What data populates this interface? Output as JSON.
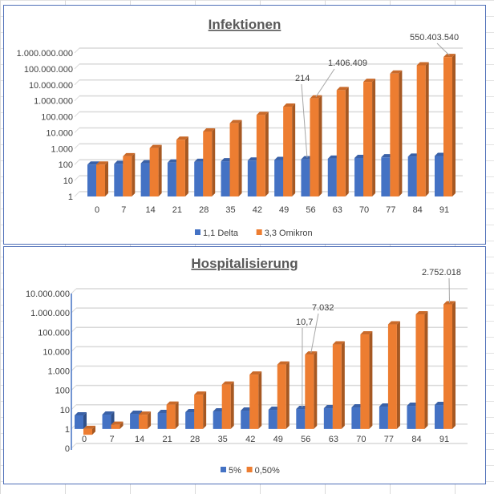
{
  "chart_data": [
    {
      "type": "bar",
      "title": "Infektionen",
      "yscale": "log",
      "ylim": [
        1,
        1000000000
      ],
      "ytick_labels": [
        "1",
        "10",
        "100",
        "1.000",
        "10.000",
        "100.000",
        "1.000.000",
        "10.000.000",
        "100.000.000",
        "1.000.000.000"
      ],
      "categories": [
        "0",
        "7",
        "14",
        "21",
        "28",
        "35",
        "42",
        "49",
        "56",
        "63",
        "70",
        "77",
        "84",
        "91"
      ],
      "series": [
        {
          "name": "1,1 Delta",
          "color": "#4472c4",
          "values": [
            100,
            110,
            121,
            133.1,
            146.41,
            161.05,
            177.16,
            194.87,
            214.36,
            235.79,
            259.37,
            285.31,
            313.84,
            345.23
          ]
        },
        {
          "name": "3,3 Omikron",
          "color": "#ed7d31",
          "values": [
            100,
            330,
            1089,
            3593.7,
            11859.21,
            39135.39,
            129146.8,
            426184.4,
            1406409,
            4641148,
            15315790,
            50542107,
            166788951,
            550403540
          ]
        }
      ],
      "annotations": [
        {
          "series": 0,
          "category": "56",
          "text": "214"
        },
        {
          "series": 1,
          "category": "56",
          "text": "1.406.409"
        },
        {
          "series": 1,
          "category": "91",
          "text": "550.403.540"
        }
      ],
      "grid": true,
      "legend": "bottom"
    },
    {
      "type": "bar",
      "title": "Hospitalisierung",
      "yscale": "log",
      "ylim": [
        0.1,
        10000000
      ],
      "ytick_labels": [
        "0",
        "1",
        "10",
        "100",
        "1.000",
        "10.000",
        "100.000",
        "1.000.000",
        "10.000.000"
      ],
      "categories": [
        "0",
        "7",
        "14",
        "21",
        "28",
        "35",
        "42",
        "49",
        "56",
        "63",
        "70",
        "77",
        "84",
        "91"
      ],
      "series": [
        {
          "name": "5%",
          "color": "#4472c4",
          "values": [
            5,
            5.5,
            6.05,
            6.66,
            7.32,
            8.05,
            8.86,
            9.74,
            10.72,
            11.79,
            12.97,
            14.27,
            15.69,
            17.26
          ]
        },
        {
          "name": "0,50%",
          "color": "#ed7d31",
          "values": [
            0.5,
            1.65,
            5.45,
            17.97,
            59.3,
            195.68,
            645.73,
            2130.92,
            7032.04,
            23205.74,
            76578.95,
            252710.53,
            833944.76,
            2752017.7
          ]
        }
      ],
      "annotations": [
        {
          "series": 0,
          "category": "56",
          "text": "10,7"
        },
        {
          "series": 1,
          "category": "56",
          "text": "7.032"
        },
        {
          "series": 1,
          "category": "91",
          "text": "2.752.018"
        }
      ],
      "grid": true,
      "legend": "bottom"
    }
  ]
}
